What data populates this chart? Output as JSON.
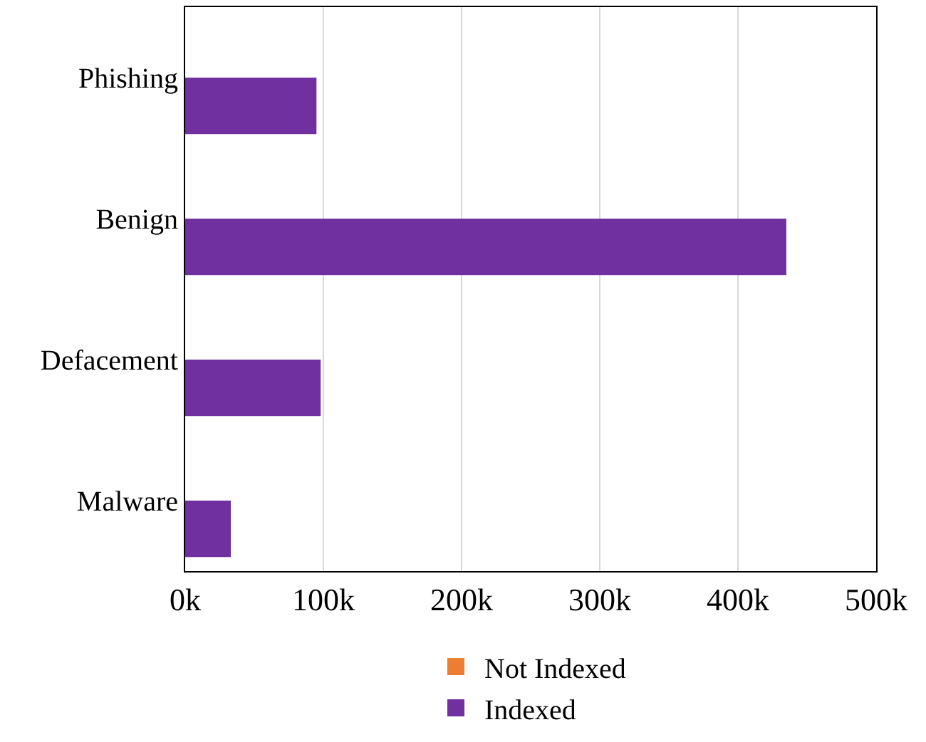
{
  "chart_data": {
    "type": "bar",
    "orientation": "horizontal",
    "categories": [
      "Phishing",
      "Benign",
      "Defacement",
      "Malware"
    ],
    "series": [
      {
        "name": "Not Indexed",
        "color": "#ed7d31",
        "values": [
          0,
          0,
          0,
          0
        ]
      },
      {
        "name": "Indexed",
        "color": "#7030a0",
        "values": [
          95000,
          435000,
          98000,
          33000
        ]
      }
    ],
    "xlim": [
      0,
      500000
    ],
    "xticks": [
      {
        "value": 0,
        "label": "0k"
      },
      {
        "value": 100000,
        "label": "100k"
      },
      {
        "value": 200000,
        "label": "200k"
      },
      {
        "value": 300000,
        "label": "300k"
      },
      {
        "value": 400000,
        "label": "400k"
      },
      {
        "value": 500000,
        "label": "500k"
      }
    ],
    "grid": "x",
    "legend": "bottom"
  }
}
